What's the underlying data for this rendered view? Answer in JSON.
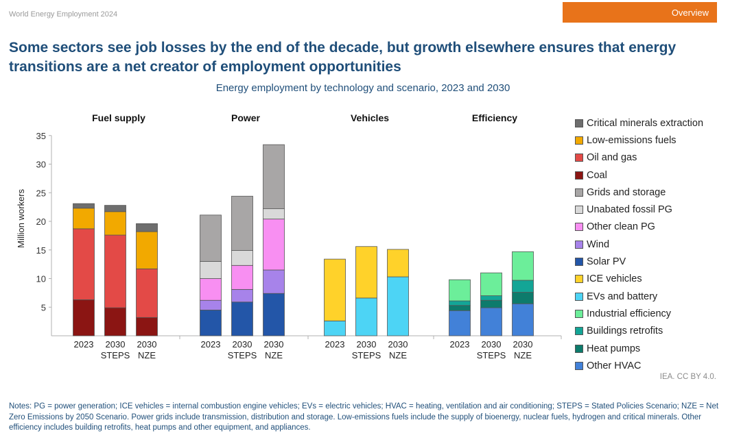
{
  "header": {
    "report_label": "World Energy Employment 2024",
    "overview_button": "Overview"
  },
  "title": "Some sectors see job losses by the end of the decade, but growth elsewhere ensures that energy transitions are a net creator of employment opportunities",
  "source": "IEA. CC BY 4.0.",
  "notes": "Notes: PG = power generation; ICE vehicles = internal combustion engine vehicles; EVs = electric vehicles; HVAC = heating, ventilation and air conditioning; STEPS = Stated Policies Scenario; NZE = Net Zero Emissions by 2050 Scenario. Power grids include transmission, distribution and storage. Low-emissions fuels include the supply of bioenergy, nuclear fuels, hydrogen and critical minerals. Other efficiency includes building retrofits, heat pumps and other equipment, and appliances.",
  "colors": {
    "accent": "#e8731a",
    "title": "#1f4e79"
  },
  "chart_data": {
    "type": "bar",
    "stacked": true,
    "title": "Energy employment by technology and scenario, 2023 and 2030",
    "ylabel": "Million workers",
    "ylim": [
      0,
      35
    ],
    "yticks": [
      5,
      10,
      15,
      20,
      25,
      30,
      35
    ],
    "grid": false,
    "legend_position": "right",
    "legend": [
      {
        "name": "Critical minerals extraction",
        "color": "#6e6e6e"
      },
      {
        "name": "Low-emissions fuels",
        "color": "#f2a900"
      },
      {
        "name": "Oil and gas",
        "color": "#e34a47"
      },
      {
        "name": "Coal",
        "color": "#8b1513"
      },
      {
        "name": "Grids and storage",
        "color": "#a8a6a6"
      },
      {
        "name": "Unabated fossil PG",
        "color": "#d9d9d9"
      },
      {
        "name": "Other clean PG",
        "color": "#f88ff2"
      },
      {
        "name": "Wind",
        "color": "#a783ea"
      },
      {
        "name": "Solar PV",
        "color": "#2356a8"
      },
      {
        "name": "ICE vehicles",
        "color": "#ffd22a"
      },
      {
        "name": "EVs and battery",
        "color": "#4dd4f5"
      },
      {
        "name": "Industrial efficiency",
        "color": "#6cee9a"
      },
      {
        "name": "Buildings retrofits",
        "color": "#13a596"
      },
      {
        "name": "Heat pumps",
        "color": "#0d7b6c"
      },
      {
        "name": "Other HVAC",
        "color": "#4281d8"
      }
    ],
    "groups": [
      {
        "name": "Fuel supply",
        "bars": [
          {
            "label": [
              "2023"
            ],
            "segments": [
              [
                "Coal",
                6.3
              ],
              [
                "Oil and gas",
                12.4
              ],
              [
                "Low-emissions fuels",
                3.6
              ],
              [
                "Critical minerals extraction",
                0.8
              ]
            ]
          },
          {
            "label": [
              "2030",
              "STEPS"
            ],
            "segments": [
              [
                "Coal",
                4.9
              ],
              [
                "Oil and gas",
                12.7
              ],
              [
                "Low-emissions fuels",
                4.1
              ],
              [
                "Critical minerals extraction",
                1.1
              ]
            ]
          },
          {
            "label": [
              "2030",
              "NZE"
            ],
            "segments": [
              [
                "Coal",
                3.2
              ],
              [
                "Oil and gas",
                8.5
              ],
              [
                "Low-emissions fuels",
                6.5
              ],
              [
                "Critical minerals extraction",
                1.4
              ]
            ]
          }
        ]
      },
      {
        "name": "Power",
        "bars": [
          {
            "label": [
              "2023"
            ],
            "segments": [
              [
                "Solar PV",
                4.5
              ],
              [
                "Wind",
                1.7
              ],
              [
                "Other clean PG",
                3.8
              ],
              [
                "Unabated fossil PG",
                3.0
              ],
              [
                "Grids and storage",
                8.1
              ]
            ]
          },
          {
            "label": [
              "2030",
              "STEPS"
            ],
            "segments": [
              [
                "Solar PV",
                5.9
              ],
              [
                "Wind",
                2.2
              ],
              [
                "Other clean PG",
                4.2
              ],
              [
                "Unabated fossil PG",
                2.6
              ],
              [
                "Grids and storage",
                9.5
              ]
            ]
          },
          {
            "label": [
              "2030",
              "NZE"
            ],
            "segments": [
              [
                "Solar PV",
                7.4
              ],
              [
                "Wind",
                4.1
              ],
              [
                "Other clean PG",
                8.9
              ],
              [
                "Unabated fossil PG",
                1.8
              ],
              [
                "Grids and storage",
                11.2
              ]
            ]
          }
        ]
      },
      {
        "name": "Vehicles",
        "bars": [
          {
            "label": [
              "2023"
            ],
            "segments": [
              [
                "EVs and battery",
                2.6
              ],
              [
                "ICE vehicles",
                10.8
              ]
            ]
          },
          {
            "label": [
              "2030",
              "STEPS"
            ],
            "segments": [
              [
                "EVs and battery",
                6.6
              ],
              [
                "ICE vehicles",
                9.0
              ]
            ]
          },
          {
            "label": [
              "2030",
              "NZE"
            ],
            "segments": [
              [
                "EVs and battery",
                10.3
              ],
              [
                "ICE vehicles",
                4.8
              ]
            ]
          }
        ]
      },
      {
        "name": "Efficiency",
        "bars": [
          {
            "label": [
              "2023"
            ],
            "segments": [
              [
                "Other HVAC",
                4.4
              ],
              [
                "Heat pumps",
                0.9
              ],
              [
                "Buildings retrofits",
                0.8
              ],
              [
                "Industrial efficiency",
                3.7
              ]
            ]
          },
          {
            "label": [
              "2030",
              "STEPS"
            ],
            "segments": [
              [
                "Other HVAC",
                4.9
              ],
              [
                "Heat pumps",
                1.3
              ],
              [
                "Buildings retrofits",
                0.8
              ],
              [
                "Industrial efficiency",
                4.0
              ]
            ]
          },
          {
            "label": [
              "2030",
              "NZE"
            ],
            "segments": [
              [
                "Other HVAC",
                5.6
              ],
              [
                "Heat pumps",
                2.0
              ],
              [
                "Buildings retrofits",
                2.1
              ],
              [
                "Industrial efficiency",
                5.0
              ]
            ]
          }
        ]
      }
    ]
  }
}
